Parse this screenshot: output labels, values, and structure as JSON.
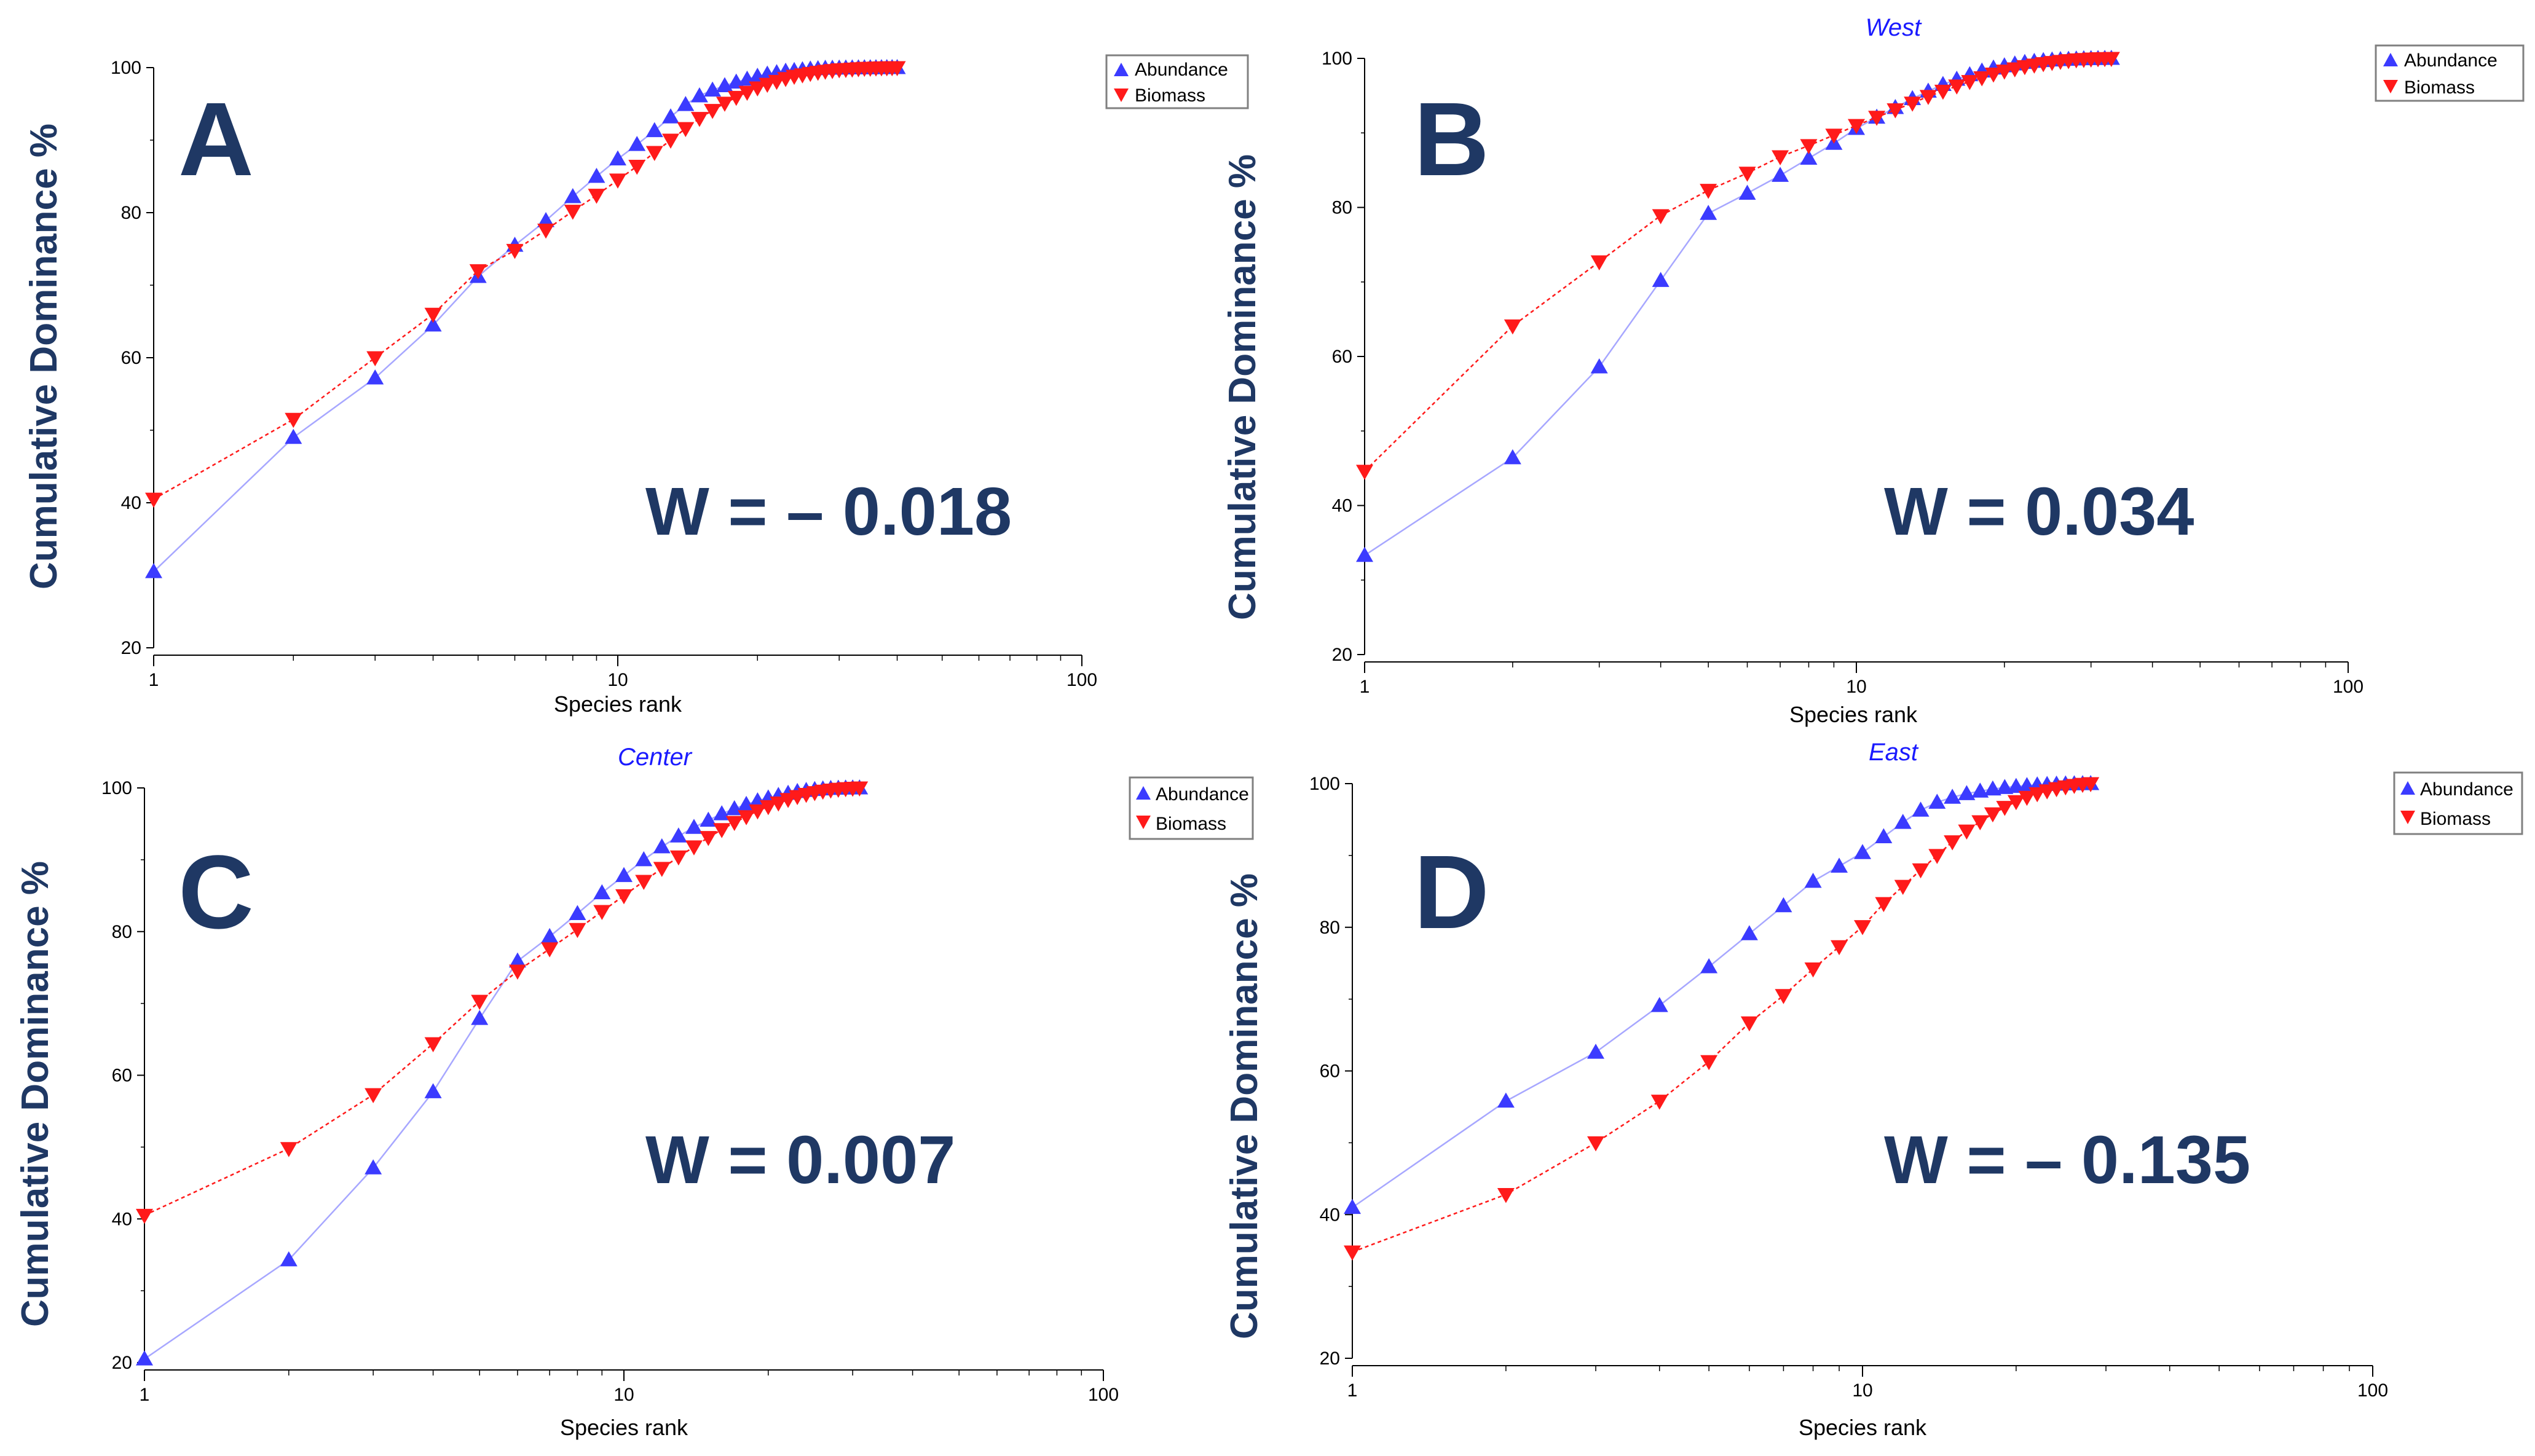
{
  "colors": {
    "abundance": "#3b3bff",
    "biomass": "#ff1a1a",
    "label": "#1f3864",
    "subtitle": "#1a1aff"
  },
  "chart_data": [
    {
      "type": "line",
      "panel": "A",
      "subtitle": "",
      "statistic": "W = – 0.018",
      "xlabel": "Species rank",
      "ylabel": "Cumulative Dominance %",
      "xscale": "log",
      "xlim": [
        1,
        100
      ],
      "ylim": [
        20,
        100
      ],
      "x_ticks": [
        "1",
        "10",
        "100"
      ],
      "y_ticks": [
        "20",
        "40",
        "60",
        "80",
        "100"
      ],
      "legend": "top-right",
      "legend_entries": [
        "Abundance",
        "Biomass"
      ],
      "series": [
        {
          "name": "Abundance",
          "marker": "triangle-up",
          "x": [
            1,
            2,
            3,
            4,
            5,
            6,
            7,
            8,
            9,
            10,
            11,
            12,
            13,
            14,
            15,
            16,
            17,
            18,
            19,
            20,
            21,
            22,
            23,
            24,
            25,
            26,
            27,
            28,
            29,
            30,
            31,
            32,
            33,
            34,
            35,
            36,
            37,
            38,
            39,
            40
          ],
          "values": [
            30.5,
            49,
            57.2,
            64.5,
            71.2,
            75.5,
            78.9,
            82.2,
            85,
            87.4,
            89.4,
            91.3,
            93.2,
            94.9,
            96.1,
            96.9,
            97.5,
            98.0,
            98.4,
            98.8,
            99.1,
            99.3,
            99.5,
            99.6,
            99.7,
            99.8,
            99.85,
            99.9,
            99.92,
            99.94,
            99.95,
            99.96,
            99.97,
            99.98,
            99.98,
            99.99,
            99.99,
            100,
            100,
            100
          ]
        },
        {
          "name": "Biomass",
          "marker": "triangle-down",
          "x": [
            1,
            2,
            3,
            4,
            5,
            6,
            7,
            8,
            9,
            10,
            11,
            12,
            13,
            14,
            15,
            16,
            17,
            18,
            19,
            20,
            21,
            22,
            23,
            24,
            25,
            26,
            27,
            28,
            29,
            30,
            31,
            32,
            33,
            34,
            35,
            36,
            37,
            38,
            39,
            40
          ],
          "values": [
            40.5,
            51.5,
            60,
            66,
            72,
            74.8,
            77.6,
            80.2,
            82.4,
            84.5,
            86.4,
            88.3,
            90,
            91.6,
            93,
            94.1,
            95.1,
            95.9,
            96.6,
            97.2,
            97.7,
            98.1,
            98.5,
            98.8,
            99.0,
            99.2,
            99.35,
            99.5,
            99.6,
            99.7,
            99.75,
            99.8,
            99.85,
            99.9,
            99.92,
            99.95,
            99.97,
            99.98,
            99.99,
            100
          ]
        }
      ]
    },
    {
      "type": "line",
      "panel": "B",
      "subtitle": "West",
      "statistic": "W = 0.034",
      "xlabel": "Species rank",
      "ylabel": "Cumulative Dominance %",
      "xscale": "log",
      "xlim": [
        1,
        100
      ],
      "ylim": [
        20,
        100
      ],
      "x_ticks": [
        "1",
        "10",
        "100"
      ],
      "y_ticks": [
        "20",
        "40",
        "60",
        "80",
        "100"
      ],
      "legend": "top-right",
      "legend_entries": [
        "Abundance",
        "Biomass"
      ],
      "series": [
        {
          "name": "Abundance",
          "marker": "triangle-up",
          "x": [
            1,
            2,
            3,
            4,
            5,
            6,
            7,
            8,
            9,
            10,
            11,
            12,
            13,
            14,
            15,
            16,
            17,
            18,
            19,
            20,
            21,
            22,
            23,
            24,
            25,
            26,
            27,
            28,
            29,
            30,
            31,
            32,
            33
          ],
          "values": [
            33.3,
            46.4,
            58.6,
            70.2,
            79.2,
            81.9,
            84.3,
            86.6,
            88.6,
            90.6,
            92.1,
            93.4,
            94.6,
            95.6,
            96.5,
            97.2,
            97.8,
            98.3,
            98.7,
            99.0,
            99.25,
            99.45,
            99.6,
            99.7,
            99.78,
            99.84,
            99.88,
            99.92,
            99.95,
            99.97,
            99.98,
            99.99,
            100
          ]
        },
        {
          "name": "Biomass",
          "marker": "triangle-down",
          "x": [
            1,
            2,
            3,
            4,
            5,
            6,
            7,
            8,
            9,
            10,
            11,
            12,
            13,
            14,
            15,
            16,
            17,
            18,
            19,
            20,
            21,
            22,
            23,
            24,
            25,
            26,
            27,
            28,
            29,
            30,
            31,
            32,
            33
          ],
          "values": [
            44.6,
            64.1,
            72.7,
            78.9,
            82.3,
            84.6,
            86.8,
            88.3,
            89.7,
            91,
            92.1,
            93.1,
            94.0,
            94.9,
            95.6,
            96.3,
            96.9,
            97.4,
            97.9,
            98.3,
            98.6,
            98.9,
            99.1,
            99.3,
            99.45,
            99.6,
            99.7,
            99.8,
            99.86,
            99.92,
            99.96,
            99.98,
            100
          ]
        }
      ]
    },
    {
      "type": "line",
      "panel": "C",
      "subtitle": "Center",
      "statistic": "W = 0.007",
      "xlabel": "Species rank",
      "ylabel": "Cumulative Dominance %",
      "xscale": "log",
      "xlim": [
        1,
        100
      ],
      "ylim": [
        20,
        100
      ],
      "x_ticks": [
        "1",
        "10",
        "100"
      ],
      "y_ticks": [
        "20",
        "40",
        "60",
        "80",
        "100"
      ],
      "legend": "top-right",
      "legend_entries": [
        "Abundance",
        "Biomass"
      ],
      "series": [
        {
          "name": "Abundance",
          "marker": "triangle-up",
          "x": [
            1,
            2,
            3,
            4,
            5,
            6,
            7,
            8,
            9,
            10,
            11,
            12,
            13,
            14,
            15,
            16,
            17,
            18,
            19,
            20,
            21,
            22,
            23,
            24,
            25,
            26,
            27,
            28,
            29,
            30,
            31
          ],
          "values": [
            20.5,
            34.3,
            47.1,
            57.7,
            67.9,
            75.9,
            79.3,
            82.5,
            85.4,
            87.8,
            90,
            91.8,
            93.3,
            94.5,
            95.5,
            96.4,
            97.1,
            97.7,
            98.2,
            98.6,
            98.95,
            99.25,
            99.5,
            99.65,
            99.78,
            99.86,
            99.92,
            99.96,
            99.98,
            99.99,
            100
          ]
        },
        {
          "name": "Biomass",
          "marker": "triangle-down",
          "x": [
            1,
            2,
            3,
            4,
            5,
            6,
            7,
            8,
            9,
            10,
            11,
            12,
            13,
            14,
            15,
            16,
            17,
            18,
            19,
            20,
            21,
            22,
            23,
            24,
            25,
            26,
            27,
            28,
            29,
            30,
            31
          ],
          "values": [
            40.5,
            49.8,
            57.3,
            64.4,
            70.3,
            74.5,
            77.6,
            80.3,
            82.8,
            85,
            87,
            88.8,
            90.4,
            91.8,
            93.1,
            94.2,
            95.2,
            96.0,
            96.8,
            97.4,
            97.9,
            98.4,
            98.8,
            99.1,
            99.35,
            99.55,
            99.7,
            99.82,
            99.9,
            99.96,
            100
          ]
        }
      ]
    },
    {
      "type": "line",
      "panel": "D",
      "subtitle": "East",
      "statistic": "W = – 0.135",
      "xlabel": "Species rank",
      "ylabel": "Cumulative Dominance %",
      "xscale": "log",
      "xlim": [
        1,
        100
      ],
      "ylim": [
        20,
        100
      ],
      "x_ticks": [
        "1",
        "10",
        "100"
      ],
      "y_ticks": [
        "20",
        "40",
        "60",
        "80",
        "100"
      ],
      "legend": "top-right",
      "legend_entries": [
        "Abundance",
        "Biomass"
      ],
      "series": [
        {
          "name": "Abundance",
          "marker": "triangle-up",
          "x": [
            1,
            2,
            3,
            4,
            5,
            6,
            7,
            8,
            9,
            10,
            11,
            12,
            13,
            14,
            15,
            16,
            17,
            18,
            19,
            20,
            21,
            22,
            23,
            24,
            25,
            26,
            27,
            28
          ],
          "values": [
            41,
            55.8,
            62.6,
            69.1,
            74.5,
            79.1,
            83,
            86.4,
            88.5,
            90.4,
            92.6,
            94.6,
            96.3,
            97.4,
            98.1,
            98.6,
            98.95,
            99.25,
            99.45,
            99.6,
            99.72,
            99.82,
            99.88,
            99.93,
            99.96,
            99.98,
            99.99,
            100
          ]
        },
        {
          "name": "Biomass",
          "marker": "triangle-down",
          "x": [
            1,
            2,
            3,
            4,
            5,
            6,
            7,
            8,
            9,
            10,
            11,
            12,
            13,
            14,
            15,
            16,
            17,
            18,
            19,
            20,
            21,
            22,
            23,
            24,
            25,
            26,
            27,
            28
          ],
          "values": [
            34.8,
            42.8,
            50,
            55.8,
            61.3,
            66.7,
            70.5,
            74.2,
            77.3,
            80.1,
            83.3,
            85.7,
            88,
            90,
            91.9,
            93.4,
            94.7,
            95.8,
            96.7,
            97.5,
            98.1,
            98.6,
            99.0,
            99.3,
            99.55,
            99.75,
            99.9,
            100
          ]
        }
      ]
    }
  ]
}
